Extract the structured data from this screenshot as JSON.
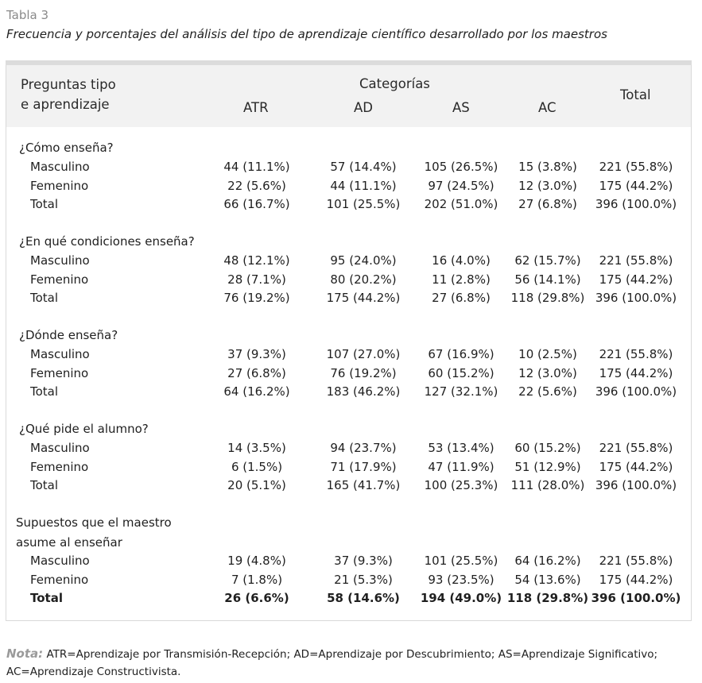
{
  "table_label": "Tabla 3",
  "table_caption": "Frecuencia y porcentajes del análisis del tipo de aprendizaje científico desarrollado por los maestros",
  "header": {
    "col1_line1": "Preguntas tipo",
    "col1_line2": "e aprendizaje",
    "categories": "Categorías",
    "atr": "ATR",
    "ad": "AD",
    "as": "AS",
    "ac": "AC",
    "total": "Total"
  },
  "sections": [
    {
      "title": "¿Cómo enseña?",
      "rows": [
        {
          "label": "Masculino",
          "atr": "44 (11.1%)",
          "ad": "57 (14.4%)",
          "as": "105 (26.5%)",
          "ac": "15 (3.8%)",
          "total": "221 (55.8%)"
        },
        {
          "label": "Femenino",
          "atr": "22 (5.6%)",
          "ad": "44 (11.1%)",
          "as": "97 (24.5%)",
          "ac": "12 (3.0%)",
          "total": "175 (44.2%)"
        },
        {
          "label": "Total",
          "atr": "66 (16.7%)",
          "ad": "101 (25.5%)",
          "as": "202 (51.0%)",
          "ac": "27 (6.8%)",
          "total": "396 (100.0%)"
        }
      ]
    },
    {
      "title": "¿En qué condiciones enseña?",
      "rows": [
        {
          "label": "Masculino",
          "atr": "48 (12.1%)",
          "ad": "95 (24.0%)",
          "as": "16 (4.0%)",
          "ac": "62 (15.7%)",
          "total": "221 (55.8%)"
        },
        {
          "label": "Femenino",
          "atr": "28 (7.1%)",
          "ad": "80 (20.2%)",
          "as": "11 (2.8%)",
          "ac": "56 (14.1%)",
          "total": "175 (44.2%)"
        },
        {
          "label": "Total",
          "atr": "76 (19.2%)",
          "ad": "175 (44.2%)",
          "as": "27 (6.8%)",
          "ac": "118 (29.8%)",
          "total": "396 (100.0%)"
        }
      ]
    },
    {
      "title": "¿Dónde enseña?",
      "rows": [
        {
          "label": "Masculino",
          "atr": "37 (9.3%)",
          "ad": "107 (27.0%)",
          "as": "67 (16.9%)",
          "ac": "10 (2.5%)",
          "total": "221 (55.8%)"
        },
        {
          "label": "Femenino",
          "atr": "27 (6.8%)",
          "ad": "76 (19.2%)",
          "as": "60 (15.2%)",
          "ac": "12 (3.0%)",
          "total": "175 (44.2%)"
        },
        {
          "label": "Total",
          "atr": "64 (16.2%)",
          "ad": "183 (46.2%)",
          "as": "127 (32.1%)",
          "ac": "22 (5.6%)",
          "total": "396 (100.0%)"
        }
      ]
    },
    {
      "title": "¿Qué pide el alumno?",
      "rows": [
        {
          "label": "Masculino",
          "atr": "14 (3.5%)",
          "ad": "94 (23.7%)",
          "as": "53 (13.4%)",
          "ac": "60 (15.2%)",
          "total": "221 (55.8%)"
        },
        {
          "label": "Femenino",
          "atr": "6 (1.5%)",
          "ad": "71 (17.9%)",
          "as": "47 (11.9%)",
          "ac": "51 (12.9%)",
          "total": "175 (44.2%)"
        },
        {
          "label": "Total",
          "atr": "20 (5.1%)",
          "ad": "165 (41.7%)",
          "as": "100 (25.3%)",
          "ac": "111 (28.0%)",
          "total": "396 (100.0%)"
        }
      ]
    },
    {
      "title_line1": "Supuestos que el maestro",
      "title_line2": "asume al enseñar",
      "rows": [
        {
          "label": "Masculino",
          "atr": "19 (4.8%)",
          "ad": "37 (9.3%)",
          "as": "101 (25.5%)",
          "ac": "64 (16.2%)",
          "total": "221 (55.8%)"
        },
        {
          "label": "Femenino",
          "atr": "7 (1.8%)",
          "ad": "21 (5.3%)",
          "as": "93 (23.5%)",
          "ac": "54 (13.6%)",
          "total": "175 (44.2%)"
        },
        {
          "label": "Total",
          "atr": "26 (6.6%)",
          "ad": "58 (14.6%)",
          "as": "194 (49.0%)",
          "ac": "118 (29.8%)",
          "total": "396 (100.0%)"
        }
      ]
    }
  ],
  "note": {
    "label": "Nota:",
    "text": "ATR=Aprendizaje por Transmisión-Recepción; AD=Aprendizaje por Descubrimiento; AS=Aprendizaje Significativo; AC=Aprendizaje Constructivista."
  }
}
